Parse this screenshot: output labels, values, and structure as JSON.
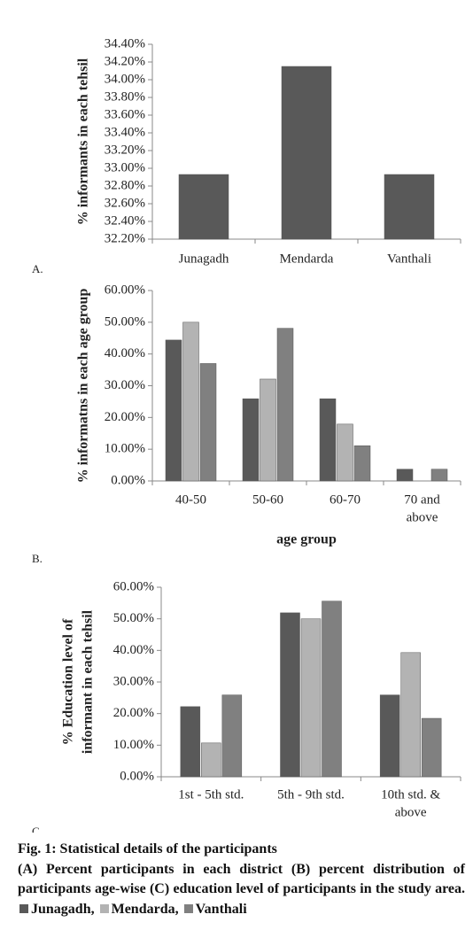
{
  "chart_data": [
    {
      "type": "bar",
      "panel": "A.",
      "y_label": [
        "% informants in each tehsil"
      ],
      "categories": [
        [
          "Junagadh"
        ],
        [
          "Mendarda"
        ],
        [
          "Vanthali"
        ]
      ],
      "values": [
        32.93,
        34.15,
        32.93
      ],
      "color": "#595959",
      "ylim": [
        32.2,
        34.4
      ],
      "yticks": [
        {
          "value": 32.2,
          "label": "32.20%"
        },
        {
          "value": 32.4,
          "label": "32.40%"
        },
        {
          "value": 32.6,
          "label": "32.60%"
        },
        {
          "value": 32.8,
          "label": "32.80%"
        },
        {
          "value": 33.0,
          "label": "33.00%"
        },
        {
          "value": 33.2,
          "label": "33.20%"
        },
        {
          "value": 33.4,
          "label": "33.40%"
        },
        {
          "value": 33.6,
          "label": "33.60%"
        },
        {
          "value": 33.8,
          "label": "33.80%"
        },
        {
          "value": 34.0,
          "label": "34.00%"
        },
        {
          "value": 34.2,
          "label": "34.20%"
        },
        {
          "value": 34.4,
          "label": "34.40%"
        }
      ]
    },
    {
      "type": "grouped_bar",
      "panel": "B.",
      "y_label": [
        "% informatns in each age group"
      ],
      "x_label": "age group",
      "categories": [
        [
          "40-50"
        ],
        [
          "50-60"
        ],
        [
          "60-70"
        ],
        [
          "70 and",
          "above"
        ]
      ],
      "series": [
        {
          "name": "Junagadh",
          "color": "#595959",
          "values": [
            44.4,
            25.9,
            25.9,
            3.7
          ]
        },
        {
          "name": "Mendarda",
          "color": "#b3b3b3",
          "values": [
            50.0,
            32.1,
            17.9,
            0
          ]
        },
        {
          "name": "Vanthali",
          "color": "#808080",
          "values": [
            37.0,
            48.1,
            11.1,
            3.7
          ]
        }
      ],
      "ylim": [
        0,
        60
      ],
      "yticks": [
        {
          "value": 0,
          "label": "0.00%"
        },
        {
          "value": 10,
          "label": "10.00%"
        },
        {
          "value": 20,
          "label": "20.00%"
        },
        {
          "value": 30,
          "label": "30.00%"
        },
        {
          "value": 40,
          "label": "40.00%"
        },
        {
          "value": 50,
          "label": "50.00%"
        },
        {
          "value": 60,
          "label": "60.00%"
        }
      ]
    },
    {
      "type": "grouped_bar",
      "panel": "C.",
      "y_label": [
        "% Education level of",
        "informant in each tehsil"
      ],
      "categories": [
        [
          "1st - 5th std."
        ],
        [
          "5th - 9th  std."
        ],
        [
          "10th std. &",
          "above"
        ]
      ],
      "series": [
        {
          "name": "Junagadh",
          "color": "#595959",
          "values": [
            22.2,
            51.9,
            25.9
          ]
        },
        {
          "name": "Mendarda",
          "color": "#b3b3b3",
          "values": [
            10.7,
            50.0,
            39.3
          ]
        },
        {
          "name": "Vanthali",
          "color": "#808080",
          "values": [
            25.9,
            55.6,
            18.5
          ]
        }
      ],
      "ylim": [
        0,
        60
      ],
      "yticks": [
        {
          "value": 0,
          "label": "0.00%"
        },
        {
          "value": 10,
          "label": "10.00%"
        },
        {
          "value": 20,
          "label": "20.00%"
        },
        {
          "value": 30,
          "label": "30.00%"
        },
        {
          "value": 40,
          "label": "40.00%"
        },
        {
          "value": 50,
          "label": "50.00%"
        },
        {
          "value": 60,
          "label": "60.00%"
        }
      ]
    }
  ],
  "caption": {
    "title": "Fig. 1: Statistical details of the participants",
    "text": "(A) Percent participants in each district (B) percent distribution of participants age-wise (C) education level of participants in the study area."
  }
}
